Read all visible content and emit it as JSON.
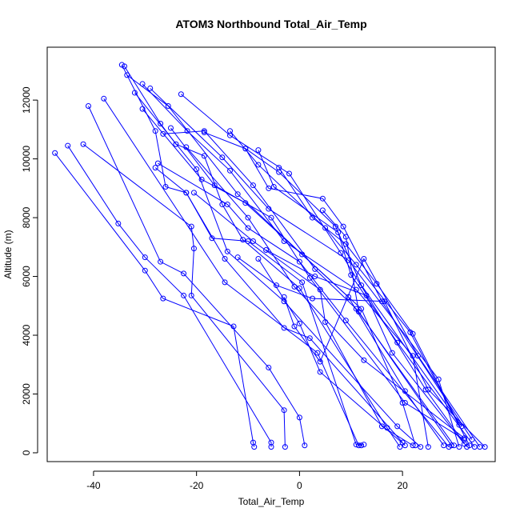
{
  "chart_data": {
    "type": "line",
    "title": "ATOM3 Northbound Total_Air_Temp",
    "xlabel": "Total_Air_Temp",
    "ylabel": "Altitude (m)",
    "xlim": [
      -49,
      38
    ],
    "ylim": [
      -300,
      13800
    ],
    "xticks": [
      -40,
      -20,
      0,
      20
    ],
    "yticks": [
      0,
      2000,
      4000,
      6000,
      8000,
      10000,
      12000
    ],
    "grid": false,
    "marker": "open-circle",
    "series_color": "#0000ff",
    "series": [
      {
        "values": [
          [
            -47.5,
            10200
          ],
          [
            -30,
            6200
          ],
          [
            -26.5,
            5250
          ],
          [
            -12.8,
            4300
          ],
          [
            -9,
            350
          ],
          [
            -8.8,
            200
          ]
        ]
      },
      {
        "values": [
          [
            -45,
            10450
          ],
          [
            -35.2,
            7800
          ],
          [
            -30,
            6650
          ],
          [
            -22.5,
            5350
          ],
          [
            -5.5,
            350
          ],
          [
            -5.5,
            200
          ]
        ]
      },
      {
        "values": [
          [
            -42,
            10500
          ],
          [
            -21,
            7700
          ],
          [
            -20.5,
            6950
          ],
          [
            -21,
            5350
          ],
          [
            -3,
            1450
          ],
          [
            -2.8,
            200
          ]
        ]
      },
      {
        "values": [
          [
            -41,
            11800
          ],
          [
            -27,
            6500
          ],
          [
            -22.5,
            6100
          ],
          [
            -6,
            2900
          ],
          [
            0,
            1200
          ],
          [
            1,
            250
          ]
        ]
      },
      {
        "values": [
          [
            -38,
            12050
          ],
          [
            -14.5,
            5800
          ],
          [
            3.5,
            3400
          ],
          [
            11.5,
            250
          ],
          [
            12,
            250
          ]
        ]
      },
      {
        "values": [
          [
            -34.5,
            13200
          ],
          [
            -28,
            10950
          ],
          [
            -26,
            9050
          ],
          [
            -22,
            8850
          ],
          [
            -17,
            7300
          ],
          [
            -10,
            7200
          ],
          [
            0.5,
            5800
          ],
          [
            11,
            280
          ],
          [
            12.5,
            280
          ]
        ]
      },
      {
        "values": [
          [
            -34,
            13150
          ],
          [
            -27,
            11200
          ],
          [
            -24,
            10500
          ],
          [
            -18.5,
            10100
          ],
          [
            -15,
            8450
          ],
          [
            -11,
            7250
          ],
          [
            0,
            5600
          ],
          [
            17,
            850
          ],
          [
            19.5,
            200
          ]
        ]
      },
      {
        "values": [
          [
            -33.5,
            12850
          ],
          [
            -25.5,
            11800
          ],
          [
            -12,
            8800
          ],
          [
            0.5,
            6750
          ],
          [
            12,
            4900
          ],
          [
            20,
            1700
          ],
          [
            22.5,
            250
          ]
        ]
      },
      {
        "values": [
          [
            -32,
            12250
          ],
          [
            -20,
            9650
          ],
          [
            -14,
            6850
          ],
          [
            -3,
            5150
          ],
          [
            19,
            900
          ],
          [
            23.5,
            200
          ]
        ]
      },
      {
        "values": [
          [
            -30.5,
            12550
          ],
          [
            -21.8,
            10950
          ],
          [
            -13.5,
            9600
          ],
          [
            -3,
            7200
          ],
          [
            11,
            5550
          ],
          [
            22,
            3300
          ],
          [
            25,
            200
          ]
        ]
      },
      {
        "values": [
          [
            -29,
            12400
          ],
          [
            -15,
            10050
          ],
          [
            -6,
            8300
          ],
          [
            9.5,
            6550
          ],
          [
            27,
            2500
          ],
          [
            31,
            200
          ]
        ]
      },
      {
        "values": [
          [
            -30.5,
            11700
          ],
          [
            -19,
            9300
          ],
          [
            -10.5,
            8500
          ],
          [
            9.5,
            5300
          ],
          [
            20.5,
            2100
          ],
          [
            28,
            250
          ]
        ]
      },
      {
        "values": [
          [
            -28,
            9700
          ],
          [
            -22,
            8850
          ],
          [
            -14.5,
            6600
          ],
          [
            -3,
            4250
          ],
          [
            2,
            3900
          ],
          [
            20,
            350
          ]
        ]
      },
      {
        "values": [
          [
            -27.5,
            9850
          ],
          [
            -14,
            8450
          ],
          [
            -10,
            7650
          ],
          [
            0,
            6500
          ],
          [
            9,
            4500
          ],
          [
            29,
            200
          ]
        ]
      },
      {
        "values": [
          [
            -26.5,
            10850
          ],
          [
            -18.5,
            10950
          ],
          [
            -9,
            9100
          ],
          [
            3,
            6250
          ],
          [
            11,
            4900
          ],
          [
            30,
            250
          ]
        ]
      },
      {
        "values": [
          [
            -25,
            11050
          ],
          [
            -16.5,
            9100
          ],
          [
            -5.5,
            8000
          ],
          [
            2,
            5950
          ],
          [
            20.5,
            1700
          ],
          [
            32,
            450
          ]
        ]
      },
      {
        "values": [
          [
            -23,
            12200
          ],
          [
            -13.5,
            10800
          ],
          [
            -2,
            9500
          ],
          [
            8,
            6800
          ],
          [
            24.5,
            2150
          ],
          [
            32.5,
            200
          ]
        ]
      },
      {
        "values": [
          [
            -22,
            10400
          ],
          [
            -10,
            8000
          ],
          [
            -1,
            5650
          ],
          [
            12.5,
            3150
          ],
          [
            32,
            500
          ]
        ]
      },
      {
        "values": [
          [
            -18.5,
            10900
          ],
          [
            -10.5,
            10350
          ],
          [
            -4,
            9550
          ],
          [
            7,
            7700
          ],
          [
            12,
            5700
          ],
          [
            31.5,
            900
          ]
        ]
      },
      {
        "values": [
          [
            -13.5,
            10950
          ],
          [
            -8,
            9800
          ],
          [
            5,
            7650
          ],
          [
            11,
            6400
          ],
          [
            21.5,
            4100
          ],
          [
            33,
            250
          ]
        ]
      },
      {
        "values": [
          [
            -10.5,
            10350
          ],
          [
            -6,
            9000
          ],
          [
            4.5,
            8650
          ],
          [
            8.5,
            7700
          ],
          [
            16,
            5150
          ],
          [
            33.5,
            450
          ]
        ]
      },
      {
        "values": [
          [
            -8,
            10300
          ],
          [
            -5,
            9050
          ],
          [
            7.5,
            7500
          ],
          [
            10,
            6050
          ],
          [
            19,
            3750
          ],
          [
            34,
            200
          ]
        ]
      },
      {
        "values": [
          [
            -4,
            9700
          ],
          [
            2.5,
            8000
          ],
          [
            9,
            7100
          ],
          [
            15,
            5750
          ],
          [
            22,
            4050
          ],
          [
            31,
            950
          ]
        ]
      },
      {
        "values": [
          [
            -6.5,
            6900
          ],
          [
            3,
            6000
          ],
          [
            13,
            5350
          ],
          [
            18,
            3400
          ],
          [
            32,
            300
          ]
        ]
      },
      {
        "values": [
          [
            -8,
            6600
          ],
          [
            0,
            4400
          ],
          [
            4,
            2750
          ],
          [
            20.5,
            250
          ]
        ]
      },
      {
        "values": [
          [
            -3,
            5300
          ],
          [
            -1,
            4300
          ],
          [
            4,
            3100
          ],
          [
            12.5,
            6600
          ],
          [
            23,
            3300
          ],
          [
            35,
            200
          ]
        ]
      },
      {
        "values": [
          [
            -12,
            6650
          ],
          [
            -4.5,
            5700
          ],
          [
            2.5,
            5250
          ],
          [
            16.5,
            5150
          ],
          [
            25,
            2150
          ],
          [
            36,
            200
          ]
        ]
      },
      {
        "values": [
          [
            -20.5,
            8850
          ],
          [
            -9,
            7200
          ],
          [
            4,
            5550
          ],
          [
            5,
            4450
          ],
          [
            16,
            900
          ],
          [
            22,
            250
          ]
        ]
      },
      {
        "values": [
          [
            4.5,
            8250
          ],
          [
            9,
            7350
          ],
          [
            11.5,
            4800
          ],
          [
            29.5,
            250
          ]
        ]
      }
    ]
  }
}
